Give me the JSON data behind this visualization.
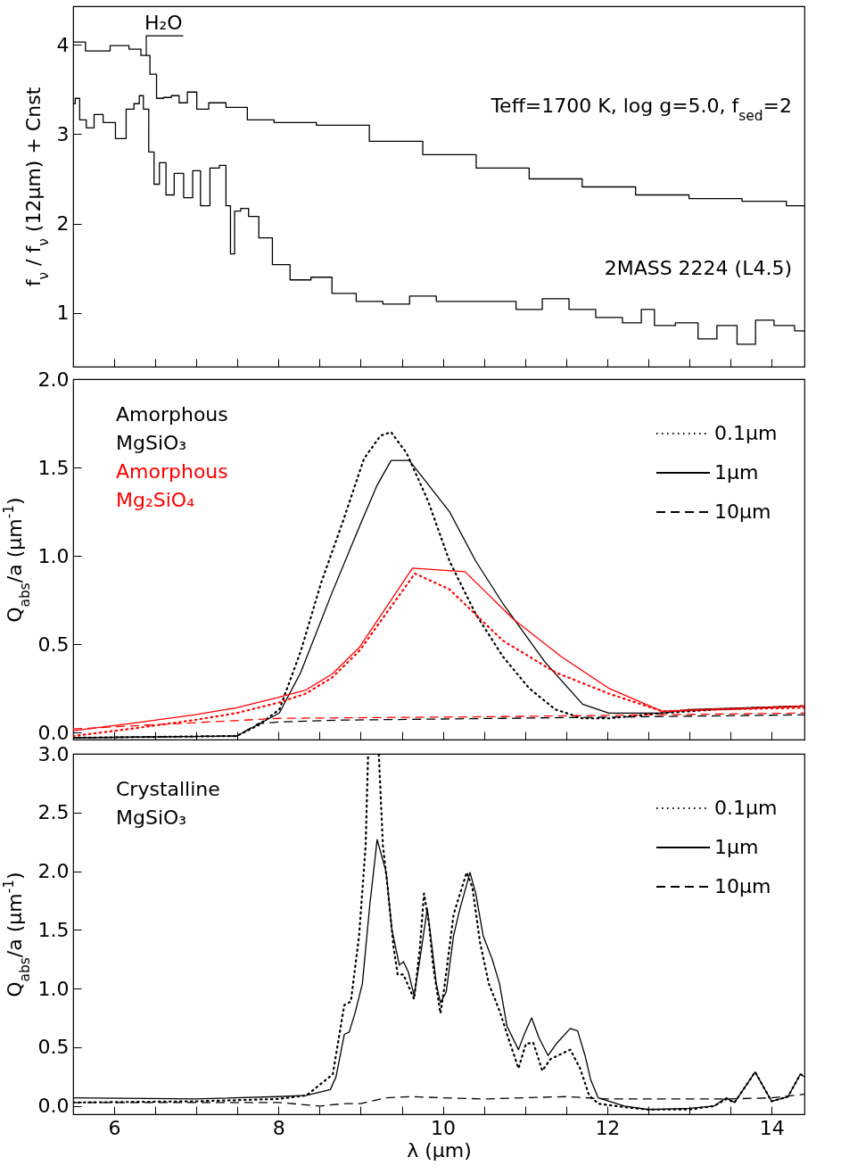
{
  "chart_data": [
    {
      "type": "step",
      "ylabel": "f$_{ν}$ / f$_{ν}$ (12μm) + Cnst",
      "xlim": [
        5.5,
        14.4
      ],
      "ylim": [
        0.4,
        4.43
      ],
      "yticks": [
        1,
        2,
        3,
        4
      ],
      "xticks": [
        6,
        {
          "value": 6.5,
          "label": null
        },
        {
          "value": 7,
          "label": null
        },
        {
          "value": 7.5,
          "label": null
        },
        8,
        {
          "value": 8.5,
          "label": null
        },
        {
          "value": 9,
          "label": null
        },
        {
          "value": 9.5,
          "label": null
        },
        10,
        {
          "value": 10.5,
          "label": null
        },
        {
          "value": 11,
          "label": null
        },
        {
          "value": 11.5,
          "label": null
        },
        12,
        {
          "value": 12.5,
          "label": null
        },
        {
          "value": 13,
          "label": null
        },
        {
          "value": 13.5,
          "label": null
        },
        14
      ],
      "tick_labels": "y",
      "legend": false,
      "annotations": [
        {
          "text": "H₂O",
          "x": 6.39,
          "y": 3.88
        }
      ],
      "series": [
        {
          "name": "Teff=1700 K, log g=5.0, f$_{sed}$=2",
          "color": "#000000",
          "x": [
            5.5,
            5.8,
            6.1,
            6.26,
            6.39,
            6.48,
            6.55,
            6.65,
            6.74,
            6.84,
            6.94,
            7.07,
            7.23,
            7.49,
            7.75,
            8.14,
            8.78,
            9.43,
            10.08,
            10.73,
            11.37,
            12.02,
            12.67,
            13.32,
            13.96,
            14.4
          ],
          "values": [
            4.03,
            3.93,
            3.99,
            3.95,
            3.88,
            3.67,
            3.4,
            3.41,
            3.43,
            3.35,
            3.47,
            3.28,
            3.35,
            3.3,
            3.16,
            3.13,
            3.1,
            2.92,
            2.77,
            2.62,
            2.5,
            2.41,
            2.32,
            2.28,
            2.25,
            2.2
          ]
        },
        {
          "name": "2MASS 2224 (L4.5)",
          "color": "#000000",
          "x": [
            5.5,
            5.55,
            5.61,
            5.71,
            5.8,
            5.93,
            6.1,
            6.19,
            6.29,
            6.32,
            6.39,
            6.45,
            6.52,
            6.58,
            6.68,
            6.78,
            6.91,
            7.0,
            7.1,
            7.23,
            7.33,
            7.39,
            7.44,
            7.49,
            7.59,
            7.68,
            7.84,
            8.01,
            8.27,
            8.52,
            8.78,
            9.11,
            9.43,
            9.76,
            10.08,
            10.73,
            11.05,
            11.37,
            11.7,
            12.02,
            12.35,
            12.48,
            12.67,
            12.99,
            13.22,
            13.45,
            13.71,
            13.9,
            14.16,
            14.4
          ],
          "values": [
            3.34,
            3.4,
            3.16,
            3.07,
            3.22,
            3.13,
            2.95,
            3.28,
            3.34,
            3.43,
            3.28,
            2.8,
            2.44,
            2.68,
            2.32,
            2.56,
            2.29,
            2.59,
            2.2,
            2.62,
            2.65,
            2.2,
            1.66,
            2.14,
            2.17,
            2.08,
            1.84,
            1.54,
            1.37,
            1.4,
            1.22,
            1.13,
            1.1,
            1.19,
            1.13,
            1.13,
            1.04,
            1.16,
            1.04,
            0.95,
            0.89,
            1.04,
            0.86,
            0.89,
            0.71,
            0.86,
            0.65,
            0.92,
            0.86,
            0.8
          ]
        }
      ]
    },
    {
      "type": "line",
      "ylabel": "Q$_{abs}$/a (μm$^{-1}$)",
      "xlim": [
        5.5,
        14.4
      ],
      "ylim": [
        -0.04,
        2.0
      ],
      "yticks": [
        {
          "value": 0,
          "label": "0.0"
        },
        0.5,
        {
          "value": 1,
          "label": "1.0"
        },
        1.5,
        {
          "value": 2,
          "label": "2.0"
        }
      ],
      "xticks": [
        6,
        {
          "value": 6.5,
          "label": null
        },
        {
          "value": 7,
          "label": null
        },
        {
          "value": 7.5,
          "label": null
        },
        8,
        {
          "value": 8.5,
          "label": null
        },
        {
          "value": 9,
          "label": null
        },
        {
          "value": 9.5,
          "label": null
        },
        10,
        {
          "value": 10.5,
          "label": null
        },
        {
          "value": 11,
          "label": null
        },
        {
          "value": 11.5,
          "label": null
        },
        12,
        {
          "value": 12.5,
          "label": null
        },
        {
          "value": 13,
          "label": null
        },
        {
          "value": 13.5,
          "label": null
        },
        14
      ],
      "tick_labels": "y",
      "legend": "top right",
      "annotations": [
        "Amorphous\nMgSiO₃",
        "Amorphous\nMg₂SiO₄"
      ],
      "series": [
        {
          "name": "0.1μm",
          "color": "#000000",
          "line_style": "dotted",
          "x": [
            5.5,
            7.49,
            7.75,
            8.01,
            8.27,
            8.52,
            8.78,
            9.04,
            9.24,
            9.37,
            9.56,
            9.82,
            10.08,
            10.4,
            10.73,
            11.05,
            11.37,
            11.7,
            12.02,
            12.67,
            13.32,
            14.4
          ],
          "values": [
            -0.03,
            -0.02,
            0.04,
            0.13,
            0.46,
            0.85,
            1.19,
            1.55,
            1.68,
            1.7,
            1.58,
            1.31,
            0.97,
            0.67,
            0.43,
            0.25,
            0.13,
            0.08,
            0.08,
            0.11,
            0.13,
            0.15
          ]
        },
        {
          "name": "1μm",
          "color": "#000000",
          "line_style": "solid",
          "x": [
            5.5,
            7.49,
            8.01,
            8.27,
            8.65,
            8.98,
            9.2,
            9.37,
            9.59,
            9.76,
            10.08,
            10.4,
            10.73,
            11.24,
            11.7,
            12.02,
            12.67,
            12.99,
            14.4
          ],
          "values": [
            -0.03,
            -0.02,
            0.11,
            0.34,
            0.79,
            1.16,
            1.4,
            1.54,
            1.54,
            1.44,
            1.25,
            0.97,
            0.73,
            0.4,
            0.16,
            0.11,
            0.11,
            0.13,
            0.15
          ]
        },
        {
          "name": "10μm",
          "color": "#000000",
          "line_style": "dashed",
          "x": [
            5.5,
            7.49,
            7.75,
            8.01,
            8.78,
            10.73,
            14.4
          ],
          "values": [
            -0.03,
            -0.02,
            0.05,
            0.06,
            0.07,
            0.08,
            0.1
          ]
        },
        {
          "color": "#ff0000",
          "line_style": "solid",
          "x": [
            5.5,
            6.19,
            6.97,
            7.49,
            8.01,
            8.33,
            8.65,
            8.98,
            9.63,
            10.27,
            10.86,
            11.44,
            12.02,
            12.67,
            14.4
          ],
          "values": [
            0.01,
            0.05,
            0.1,
            0.14,
            0.2,
            0.24,
            0.33,
            0.48,
            0.93,
            0.91,
            0.64,
            0.43,
            0.25,
            0.12,
            0.15
          ]
        },
        {
          "color": "#ff0000",
          "line_style": "dotted",
          "x": [
            5.5,
            6.19,
            6.97,
            7.49,
            8.01,
            8.33,
            8.65,
            8.98,
            9.66,
            10.08,
            10.73,
            11.37,
            12.02,
            12.67,
            13.32,
            14.4
          ],
          "values": [
            -0.02,
            0.02,
            0.07,
            0.11,
            0.17,
            0.22,
            0.31,
            0.46,
            0.9,
            0.81,
            0.52,
            0.34,
            0.22,
            0.12,
            0.13,
            0.14
          ]
        },
        {
          "color": "#ff0000",
          "line_style": "dashed",
          "x": [
            5.5,
            8.01,
            10.73,
            14.4
          ],
          "values": [
            0.02,
            0.08,
            0.09,
            0.11
          ]
        }
      ]
    },
    {
      "type": "line",
      "xlabel": "λ (μm)",
      "ylabel": "Q$_{abs}$/a (μm$^{-1}$)",
      "xlim": [
        5.5,
        14.4
      ],
      "ylim": [
        -0.07,
        3.0
      ],
      "yticks": [
        {
          "value": 0,
          "label": "0.0"
        },
        0.5,
        {
          "value": 1,
          "label": "1.0"
        },
        1.5,
        {
          "value": 2,
          "label": "2.0"
        },
        2.5,
        {
          "value": 3,
          "label": "3.0"
        }
      ],
      "xticks": [
        6,
        {
          "value": 6.5,
          "label": null
        },
        {
          "value": 7,
          "label": null
        },
        {
          "value": 7.5,
          "label": null
        },
        8,
        {
          "value": 8.5,
          "label": null
        },
        {
          "value": 9,
          "label": null
        },
        {
          "value": 9.5,
          "label": null
        },
        10,
        {
          "value": 10.5,
          "label": null
        },
        {
          "value": 11,
          "label": null
        },
        {
          "value": 11.5,
          "label": null
        },
        12,
        {
          "value": 12.5,
          "label": null
        },
        {
          "value": 13,
          "label": null
        },
        {
          "value": 13.5,
          "label": null
        },
        14
      ],
      "legend": "top right",
      "annotations": [
        "Crystalline\nMgSiO₃"
      ],
      "series": [
        {
          "name": "0.1μm",
          "color": "#000000",
          "line_style": "dotted",
          "x": [
            5.5,
            7.0,
            8.0,
            8.34,
            8.66,
            8.8,
            8.88,
            8.98,
            9.06,
            9.09,
            9.22,
            9.27,
            9.32,
            9.4,
            9.45,
            9.52,
            9.65,
            9.72,
            9.77,
            9.83,
            9.88,
            9.93,
            9.97,
            10.02,
            10.13,
            10.2,
            10.29,
            10.36,
            10.45,
            10.56,
            10.69,
            10.81,
            10.92,
            11.01,
            11.1,
            11.21,
            11.31,
            11.46,
            11.55,
            11.67,
            11.78,
            11.89,
            12.21,
            12.5,
            13.0,
            13.3,
            13.45,
            13.55,
            13.8,
            14.0,
            14.2,
            14.35,
            14.4
          ],
          "values": [
            0.03,
            0.04,
            0.06,
            0.09,
            0.27,
            0.86,
            0.89,
            1.45,
            2.22,
            3.0,
            3.0,
            2.22,
            1.91,
            1.35,
            1.12,
            1.12,
            0.91,
            1.35,
            1.81,
            1.56,
            1.2,
            0.97,
            0.79,
            1.02,
            1.63,
            1.79,
            1.99,
            1.86,
            1.4,
            1.04,
            0.81,
            0.55,
            0.32,
            0.53,
            0.54,
            0.3,
            0.4,
            0.45,
            0.48,
            0.32,
            0.09,
            0.02,
            -0.01,
            -0.03,
            -0.03,
            0.0,
            0.06,
            0.03,
            0.29,
            0.04,
            0.08,
            0.27,
            0.26
          ]
        },
        {
          "name": "1μm",
          "color": "#000000",
          "line_style": "solid",
          "x": [
            5.5,
            7.0,
            8.0,
            8.34,
            8.63,
            8.7,
            8.8,
            8.86,
            8.93,
            9.02,
            9.11,
            9.2,
            9.31,
            9.38,
            9.47,
            9.52,
            9.58,
            9.65,
            9.72,
            9.81,
            9.86,
            9.92,
            9.97,
            10.04,
            10.13,
            10.2,
            10.33,
            10.4,
            10.49,
            10.6,
            10.69,
            10.78,
            10.92,
            10.99,
            11.08,
            11.17,
            11.28,
            11.38,
            11.55,
            11.64,
            11.73,
            11.8,
            11.89,
            12.21,
            12.5,
            13.0,
            13.3,
            13.45,
            13.55,
            13.8,
            14.0,
            14.2,
            14.35,
            14.4
          ],
          "values": [
            0.07,
            0.06,
            0.08,
            0.09,
            0.14,
            0.25,
            0.61,
            0.63,
            0.79,
            1.04,
            1.71,
            2.27,
            1.99,
            1.5,
            1.2,
            1.23,
            1.14,
            0.94,
            1.25,
            1.68,
            1.4,
            1.04,
            0.88,
            0.97,
            1.45,
            1.66,
            1.99,
            1.81,
            1.45,
            1.25,
            1.04,
            0.68,
            0.48,
            0.61,
            0.75,
            0.58,
            0.43,
            0.53,
            0.66,
            0.64,
            0.43,
            0.22,
            0.07,
            0.0,
            -0.03,
            -0.02,
            0.0,
            0.07,
            0.03,
            0.29,
            0.04,
            0.08,
            0.27,
            0.25
          ]
        },
        {
          "name": "10μm",
          "color": "#000000",
          "line_style": "dashed",
          "x": [
            5.5,
            8.0,
            8.5,
            8.8,
            9.0,
            9.3,
            9.6,
            10.0,
            10.5,
            11.0,
            11.5,
            12.0,
            13.0,
            13.5,
            14.0,
            14.4
          ],
          "values": [
            0.03,
            0.03,
            0.0,
            0.02,
            0.02,
            0.07,
            0.08,
            0.07,
            0.06,
            0.07,
            0.08,
            0.06,
            0.06,
            0.06,
            0.07,
            0.1
          ]
        }
      ]
    }
  ]
}
